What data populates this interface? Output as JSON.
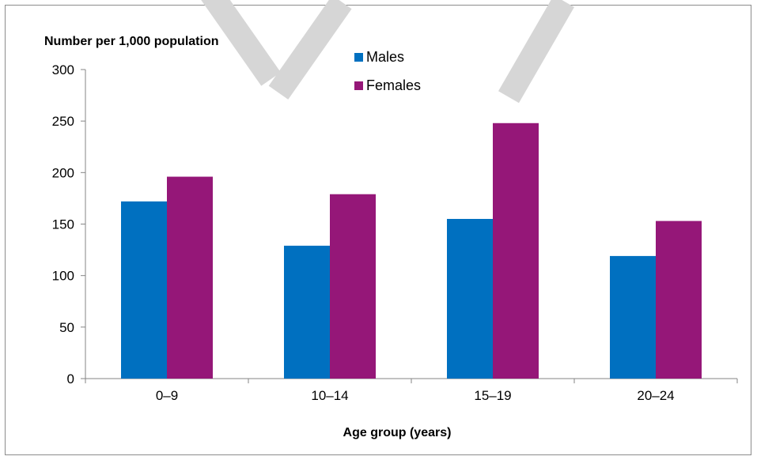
{
  "chart_data": {
    "type": "bar",
    "title": "",
    "ylabel": "Number per 1,000 population",
    "xlabel": "Age group (years)",
    "categories": [
      "0–9",
      "10–14",
      "15–19",
      "20–24"
    ],
    "series": [
      {
        "name": "Males",
        "color": "#0070c0",
        "values": [
          172,
          129,
          155,
          119
        ]
      },
      {
        "name": "Females",
        "color": "#951778",
        "values": [
          196,
          179,
          248,
          153
        ]
      }
    ],
    "ylim": [
      0,
      300
    ],
    "yticks": [
      0,
      50,
      100,
      150,
      200,
      250,
      300
    ],
    "grid": false,
    "legend_position": "top"
  }
}
